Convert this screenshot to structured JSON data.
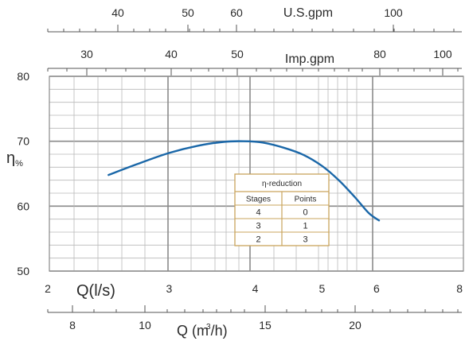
{
  "chart_data": {
    "type": "line",
    "xlabel": "Q(l/s)",
    "ylabel": "η",
    "ylabel_unit": "%",
    "xlim": [
      2,
      8
    ],
    "ylim": [
      50,
      80
    ],
    "x_scale": "log",
    "x_ticks": [
      2,
      3,
      4,
      5,
      6,
      8
    ],
    "y_ticks": [
      50,
      60,
      70,
      80
    ],
    "grid": true,
    "series": [
      {
        "x": [
          2.45,
          2.7,
          3.0,
          3.3,
          3.6,
          3.85,
          4.1,
          4.4,
          4.7,
          5.0,
          5.3,
          5.6,
          5.85,
          6.05
        ],
        "y": [
          64.8,
          66.5,
          68.2,
          69.3,
          69.9,
          70.0,
          69.8,
          69.0,
          67.9,
          66.2,
          63.9,
          61.2,
          58.9,
          57.8
        ],
        "color": "#1a67a8"
      }
    ],
    "top_axes": [
      {
        "label": "U.S.gpm",
        "ticks": [
          40,
          50,
          60,
          100
        ]
      },
      {
        "label": "Imp.gpm",
        "ticks": [
          30,
          40,
          50,
          80,
          100
        ]
      }
    ],
    "bottom_axis": {
      "label_main": "Q (m",
      "label_sup": "3",
      "label_tail": "/h)",
      "ticks": [
        8,
        10,
        15,
        20
      ]
    },
    "reduction_table": {
      "title": "η-reduction",
      "headers": [
        "Stages",
        "Points"
      ],
      "rows": [
        [
          "4",
          "0"
        ],
        [
          "3",
          "1"
        ],
        [
          "2",
          "3"
        ]
      ],
      "border_color": "#c9a45c"
    }
  }
}
